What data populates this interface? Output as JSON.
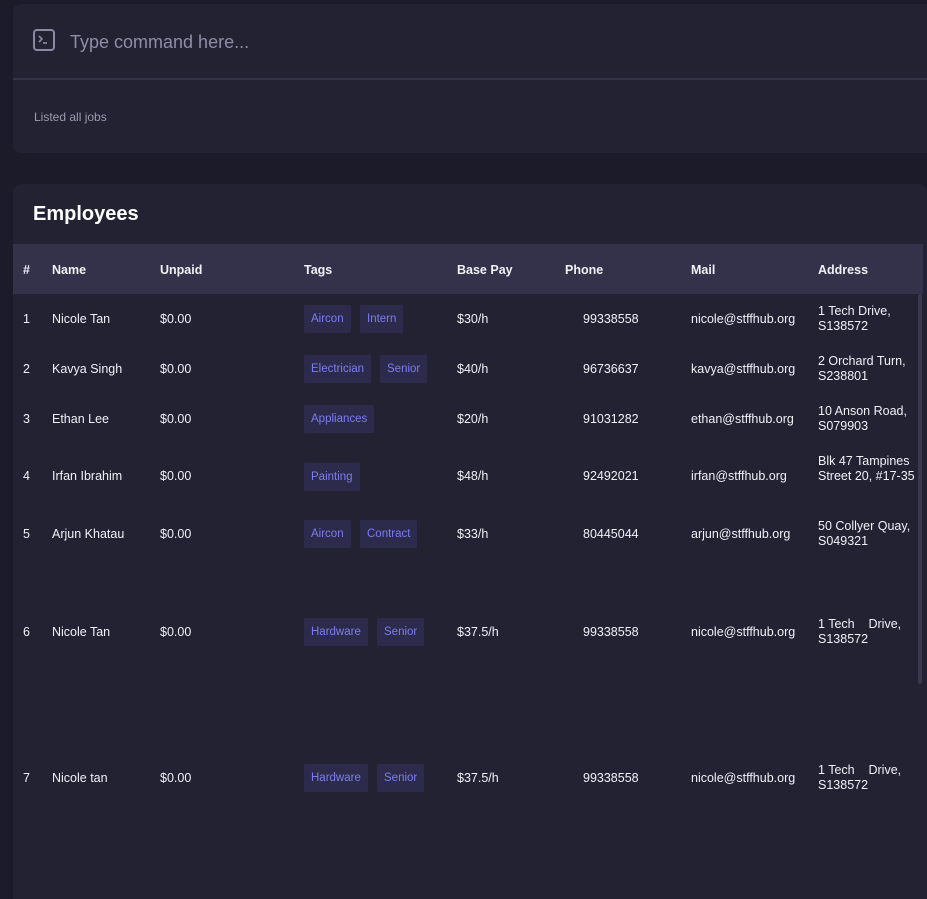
{
  "command": {
    "placeholder": "Type command here...",
    "value": "",
    "result": "Listed all jobs"
  },
  "employees": {
    "title": "Employees",
    "columns": [
      "#",
      "Name",
      "Unpaid",
      "Tags",
      "Base Pay",
      "Phone",
      "Mail",
      "Address"
    ],
    "rows": [
      {
        "index": "1",
        "name": "Nicole Tan",
        "unpaid": "$0.00",
        "tags": [
          "Aircon",
          "Intern"
        ],
        "base_pay": "$30/h",
        "phone": "99338558",
        "mail": "nicole@stffhub.org",
        "address": "1 Tech Drive, S138572"
      },
      {
        "index": "2",
        "name": "Kavya Singh",
        "unpaid": "$0.00",
        "tags": [
          "Electrician",
          "Senior"
        ],
        "base_pay": "$40/h",
        "phone": "96736637",
        "mail": "kavya@stffhub.org",
        "address": "2 Orchard Turn, S238801"
      },
      {
        "index": "3",
        "name": "Ethan Lee",
        "unpaid": "$0.00",
        "tags": [
          "Appliances"
        ],
        "base_pay": "$20/h",
        "phone": "91031282",
        "mail": "ethan@stffhub.org",
        "address": "10 Anson Road, S079903"
      },
      {
        "index": "4",
        "name": "Irfan Ibrahim",
        "unpaid": "$0.00",
        "tags": [
          "Painting"
        ],
        "base_pay": "$48/h",
        "phone": "92492021",
        "mail": "irfan@stffhub.org",
        "address": "Blk 47 Tampines Street 20, #17-35"
      },
      {
        "index": "5",
        "name": "Arjun Khatau",
        "unpaid": "$0.00",
        "tags": [
          "Aircon",
          "Contract"
        ],
        "base_pay": "$33/h",
        "phone": "80445044",
        "mail": "arjun@stffhub.org",
        "address": "50 Collyer Quay, S049321"
      },
      {
        "index": "6",
        "name": "Nicole Tan",
        "unpaid": "$0.00",
        "tags": [
          "Hardware",
          "Senior"
        ],
        "base_pay": "$37.5/h",
        "phone": "99338558",
        "mail": "nicole@stffhub.org",
        "address": "1 Tech    Drive, S138572"
      },
      {
        "index": "7",
        "name": "Nicole tan",
        "unpaid": "$0.00",
        "tags": [
          "Hardware",
          "Senior"
        ],
        "base_pay": "$37.5/h",
        "phone": "99338558",
        "mail": "nicole@stffhub.org",
        "address": "1 Tech    Drive, S138572"
      }
    ]
  },
  "icons": {
    "command": "terminal-icon"
  },
  "colors": {
    "background": "#1c1b29",
    "panel": "#232233",
    "header": "#33324a",
    "tag_bg": "#2c2b4c",
    "tag_text": "#7d7cf0"
  }
}
